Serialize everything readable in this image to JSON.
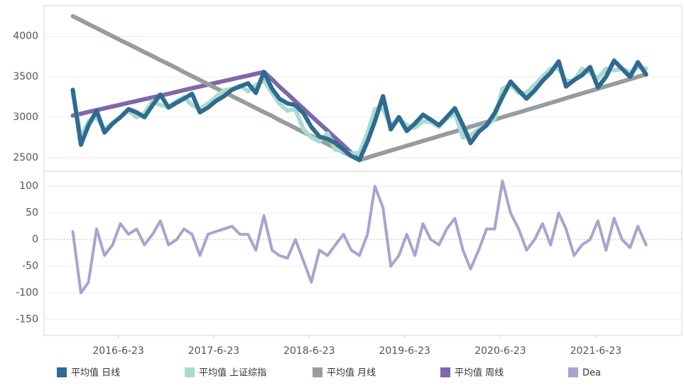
{
  "chart_data": [
    {
      "type": "line",
      "x": [
        "2016-1-1",
        "2016-2-1",
        "2016-3-1",
        "2016-4-1",
        "2016-5-1",
        "2016-6-1",
        "2016-7-1",
        "2016-8-1",
        "2016-9-1",
        "2016-10-1",
        "2016-11-1",
        "2016-12-1",
        "2017-1-1",
        "2017-2-1",
        "2017-3-1",
        "2017-4-1",
        "2017-5-1",
        "2017-6-1",
        "2017-7-1",
        "2017-8-1",
        "2017-9-1",
        "2017-10-1",
        "2017-11-1",
        "2017-12-1",
        "2018-1-1",
        "2018-2-1",
        "2018-3-1",
        "2018-4-1",
        "2018-5-1",
        "2018-6-1",
        "2018-7-1",
        "2018-8-1",
        "2018-9-1",
        "2018-10-1",
        "2018-11-1",
        "2018-12-1",
        "2019-1-1",
        "2019-2-1",
        "2019-3-1",
        "2019-4-1",
        "2019-5-1",
        "2019-6-1",
        "2019-7-1",
        "2019-8-1",
        "2019-9-1",
        "2019-10-1",
        "2019-11-1",
        "2019-12-1",
        "2020-1-1",
        "2020-2-1",
        "2020-3-1",
        "2020-4-1",
        "2020-5-1",
        "2020-6-1",
        "2020-7-1",
        "2020-8-1",
        "2020-9-1",
        "2020-10-1",
        "2020-11-1",
        "2020-12-1",
        "2021-1-1",
        "2021-2-1",
        "2021-3-1",
        "2021-4-1",
        "2021-5-1",
        "2021-6-1",
        "2021-7-1",
        "2021-8-1",
        "2021-9-1",
        "2021-10-1",
        "2021-11-1",
        "2021-12-1",
        "2022-1-1"
      ],
      "xlim": [
        "2015-9-13",
        "2022-5-18"
      ],
      "ylim": [
        2340,
        4380
      ],
      "yticks": [
        2500,
        3000,
        3500,
        4000
      ],
      "grid": true,
      "series": [
        {
          "name": "平均值 日线",
          "color": "#2f6b91",
          "values": [
            3340,
            2660,
            2900,
            3080,
            2810,
            2920,
            3000,
            3100,
            3060,
            3000,
            3150,
            3280,
            3120,
            3180,
            3230,
            3290,
            3060,
            3120,
            3200,
            3260,
            3340,
            3380,
            3420,
            3300,
            3560,
            3350,
            3230,
            3170,
            3150,
            3050,
            2880,
            2760,
            2730,
            2680,
            2600,
            2520,
            2470,
            2700,
            2950,
            3260,
            2850,
            3000,
            2830,
            2920,
            3030,
            2970,
            2900,
            3000,
            3110,
            2900,
            2680,
            2820,
            2900,
            3050,
            3250,
            3440,
            3330,
            3230,
            3330,
            3450,
            3550,
            3690,
            3380,
            3460,
            3520,
            3620,
            3370,
            3500,
            3700,
            3600,
            3500,
            3680,
            3530
          ]
        },
        {
          "name": "平均值 上证综指",
          "color": "#a8dcd1",
          "values": [
            3300,
            2750,
            2950,
            3000,
            2850,
            2930,
            3000,
            3080,
            3000,
            3050,
            3200,
            3150,
            3130,
            3200,
            3250,
            3150,
            3100,
            3170,
            3250,
            3330,
            3350,
            3390,
            3320,
            3400,
            3450,
            3300,
            3170,
            3080,
            3100,
            2850,
            2750,
            2700,
            2800,
            2600,
            2580,
            2550,
            2560,
            2800,
            3100,
            3100,
            2900,
            2980,
            2900,
            2870,
            2950,
            2940,
            2880,
            2980,
            3050,
            2750,
            2780,
            2850,
            2900,
            2980,
            3350,
            3400,
            3300,
            3300,
            3400,
            3500,
            3600,
            3600,
            3450,
            3450,
            3600,
            3550,
            3480,
            3600,
            3580,
            3600,
            3560,
            3620,
            3600
          ]
        },
        {
          "name": "平均值 月线",
          "color": "#999c9d",
          "values": [
            4250,
            4201,
            4151,
            4102,
            4052,
            4003,
            3953,
            3904,
            3854,
            3805,
            3756,
            3706,
            3657,
            3607,
            3558,
            3508,
            3459,
            3409,
            3360,
            3311,
            3261,
            3212,
            3162,
            3113,
            3063,
            3014,
            2964,
            2915,
            2866,
            2816,
            2767,
            2717,
            2668,
            2618,
            2569,
            2519,
            2470,
            2499,
            2529,
            2558,
            2588,
            2617,
            2647,
            2676,
            2706,
            2735,
            2764,
            2794,
            2823,
            2853,
            2882,
            2912,
            2941,
            2971,
            3000,
            3030,
            3059,
            3088,
            3118,
            3147,
            3177,
            3206,
            3236,
            3265,
            3294,
            3324,
            3353,
            3383,
            3412,
            3442,
            3471,
            3501,
            3530
          ]
        },
        {
          "name": "平均值 周线",
          "color": "#7d69a8",
          "values": [
            3020,
            3043,
            3065,
            3088,
            3110,
            3133,
            3155,
            3178,
            3200,
            3223,
            3245,
            3268,
            3290,
            3313,
            3335,
            3358,
            3380,
            3403,
            3425,
            3448,
            3470,
            3493,
            3515,
            3538,
            3560,
            3469,
            3378,
            3288,
            3197,
            3106,
            3015,
            2924,
            2833,
            2742,
            2652,
            2561,
            2470,
            2700,
            2950,
            3260,
            2850,
            3000,
            2830,
            2920,
            3030,
            2970,
            2900,
            3000,
            3110,
            2900,
            2680,
            2820,
            2900,
            3050,
            3250,
            3440,
            3330,
            3230,
            3330,
            3450,
            3550,
            3690,
            3380,
            3460,
            3520,
            3620,
            3370,
            3500,
            3700,
            3600,
            3500,
            3680,
            3530
          ]
        }
      ]
    },
    {
      "type": "line",
      "x": [
        "2016-1-1",
        "2016-2-1",
        "2016-3-1",
        "2016-4-1",
        "2016-5-1",
        "2016-6-1",
        "2016-7-1",
        "2016-8-1",
        "2016-9-1",
        "2016-10-1",
        "2016-11-1",
        "2016-12-1",
        "2017-1-1",
        "2017-2-1",
        "2017-3-1",
        "2017-4-1",
        "2017-5-1",
        "2017-6-1",
        "2017-7-1",
        "2017-8-1",
        "2017-9-1",
        "2017-10-1",
        "2017-11-1",
        "2017-12-1",
        "2018-1-1",
        "2018-2-1",
        "2018-3-1",
        "2018-4-1",
        "2018-5-1",
        "2018-6-1",
        "2018-7-1",
        "2018-8-1",
        "2018-9-1",
        "2018-10-1",
        "2018-11-1",
        "2018-12-1",
        "2019-1-1",
        "2019-2-1",
        "2019-3-1",
        "2019-4-1",
        "2019-5-1",
        "2019-6-1",
        "2019-7-1",
        "2019-8-1",
        "2019-9-1",
        "2019-10-1",
        "2019-11-1",
        "2019-12-1",
        "2020-1-1",
        "2020-2-1",
        "2020-3-1",
        "2020-4-1",
        "2020-5-1",
        "2020-6-1",
        "2020-7-1",
        "2020-8-1",
        "2020-9-1",
        "2020-10-1",
        "2020-11-1",
        "2020-12-1",
        "2021-1-1",
        "2021-2-1",
        "2021-3-1",
        "2021-4-1",
        "2021-5-1",
        "2021-6-1",
        "2021-7-1",
        "2021-8-1",
        "2021-9-1",
        "2021-10-1",
        "2021-11-1",
        "2021-12-1",
        "2022-1-1"
      ],
      "xlim": [
        "2015-9-13",
        "2022-5-18"
      ],
      "xticks": [
        "2016-6-23",
        "2017-6-23",
        "2018-6-23",
        "2019-6-23",
        "2020-6-23",
        "2021-6-23"
      ],
      "ylim": [
        -180,
        127
      ],
      "yticks": [
        -150,
        -100,
        -50,
        0,
        50,
        100
      ],
      "grid": true,
      "series": [
        {
          "name": "Dea",
          "color": "#a9a3d0",
          "values": [
            15,
            -100,
            -80,
            20,
            -30,
            -10,
            30,
            10,
            20,
            -10,
            10,
            35,
            -10,
            0,
            20,
            10,
            -30,
            10,
            15,
            20,
            25,
            10,
            10,
            -20,
            45,
            -20,
            -30,
            -35,
            0,
            -40,
            -80,
            -20,
            -30,
            -10,
            10,
            -20,
            -30,
            10,
            100,
            60,
            -50,
            -30,
            10,
            -30,
            30,
            0,
            -10,
            20,
            40,
            -20,
            -55,
            -20,
            20,
            20,
            110,
            50,
            20,
            -20,
            0,
            30,
            -10,
            50,
            20,
            -30,
            -10,
            0,
            35,
            -20,
            40,
            0,
            -15,
            25,
            -10
          ]
        }
      ]
    }
  ]
}
